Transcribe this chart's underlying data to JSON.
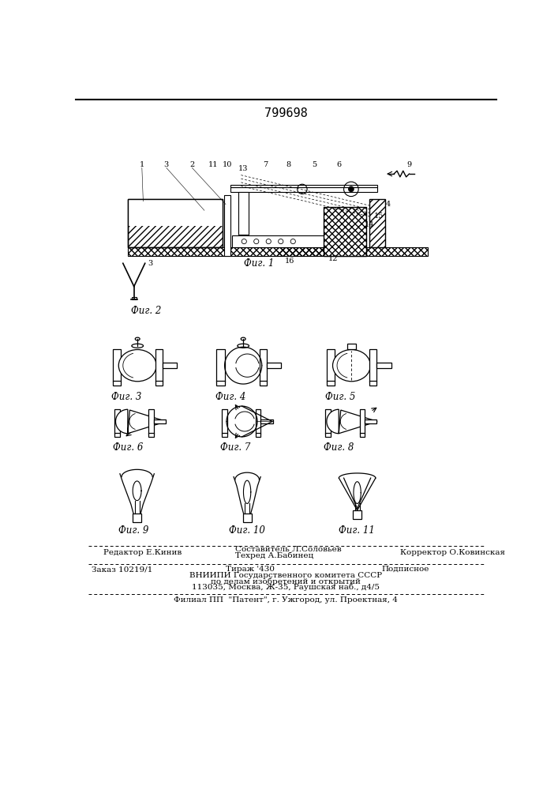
{
  "patent_number": "799698",
  "bg_color": "#ffffff",
  "footer": {
    "editor": "Редактор Е.Кинив",
    "composer_label": "Составитель Л.Соловьев",
    "techred_label": "Техред А.Бабинец",
    "corrector": "Корректор О.Ковинская",
    "order": "Заказ 10219/1",
    "tirazh": "Тираж '430",
    "podpisnoe": "Подписное",
    "vniip1": "ВНИИПИ Государственного комитета СССР",
    "vniip2": "по делам изобретений и открытий",
    "vniip3": "113035, Москва, Ж-35, Раушская наб., д4/5",
    "filial": "Филиал ПП  \"Патент\", г. Ужгород, ул. Проектная, 4"
  }
}
